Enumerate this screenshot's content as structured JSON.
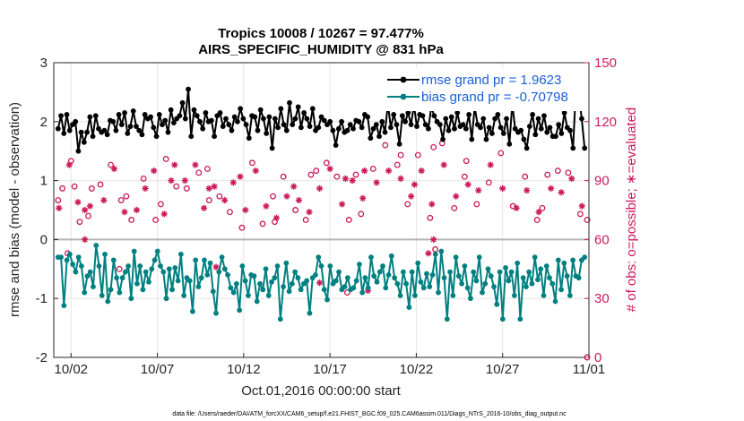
{
  "chart_data": {
    "type": "line",
    "title": "Tropics 10008 / 10267 = 97.477%",
    "subtitle": "AIRS_SPECIFIC_HUMIDITY @ 831 hPa",
    "xlabel": "Oct.01,2016 00:00:00 start",
    "ylabel": "rmse and bias (model - observation)",
    "ylabel_right": "# of obs: o=possible; ∗=evaluated",
    "xlim": [
      0,
      31
    ],
    "ylim": [
      -2,
      3
    ],
    "ylim_right": [
      0,
      150
    ],
    "x_ticks": [
      1,
      6,
      11,
      16,
      21,
      26,
      31
    ],
    "x_tick_labels": [
      "10/02",
      "10/07",
      "10/12",
      "10/17",
      "10/22",
      "10/27",
      "11/01"
    ],
    "y_ticks": [
      -2,
      -1,
      0,
      1,
      2,
      3
    ],
    "y_tick_labels": [
      "-2",
      "-1",
      "0",
      "1",
      "2",
      "3"
    ],
    "y_ticks_right": [
      0,
      30,
      60,
      90,
      120,
      150
    ],
    "y_tick_labels_right": [
      "0",
      "30",
      "60",
      "90",
      "120",
      "150"
    ],
    "grid": true,
    "legend_position": "top-right",
    "footer": "data file: /Users/raeder/DAI/ATM_forcXX/CAM6_setup/f.e21.FHIST_BGC.f09_025.CAM6assim.011/Diags_NTrS_2016-10/obs_diag_output.nc",
    "colors": {
      "rmse": "#000000",
      "bias": "#008080",
      "obs": "#cc1a5a",
      "legend_text": "#1a5fd6"
    },
    "series": [
      {
        "name": "rmse grand pr = 1.9623",
        "values": [
          1.88,
          2.1,
          1.8,
          2.12,
          1.85,
          1.95,
          2.0,
          1.5,
          1.82,
          1.65,
          1.82,
          2.08,
          1.75,
          2.1,
          1.88,
          1.82,
          1.85,
          1.78,
          2.02,
          2.0,
          1.85,
          2.12,
          1.95,
          2.15,
          1.8,
          1.92,
          2.18,
          1.92,
          1.85,
          1.78,
          2.12,
          2.05,
          2.08,
          1.9,
          1.75,
          2.12,
          1.95,
          2.02,
          1.82,
          2.2,
          1.98,
          2.05,
          2.1,
          2.32,
          2.05,
          2.55,
          1.75,
          2.2,
          2.1,
          2.0,
          1.88,
          2.15,
          2.0,
          2.02,
          1.75,
          2.1,
          2.15,
          1.92,
          2.05,
          1.95,
          1.85,
          2.08,
          2.0,
          2.22,
          2.05,
          1.95,
          1.72,
          2.1,
          2.08,
          1.85,
          2.2,
          2.05,
          1.8,
          2.08,
          1.55,
          2.05,
          1.9,
          2.22,
          1.95,
          1.85,
          2.32,
          1.95,
          2.05,
          2.25,
          1.9,
          2.15,
          2.05,
          1.92,
          2.22,
          1.85,
          1.9,
          2.08,
          2.02,
          1.95,
          2.0,
          1.85,
          1.6,
          1.88,
          2.0,
          1.82,
          1.85,
          1.95,
          1.88,
          2.02,
          2.0,
          1.9,
          2.12,
          2.08,
          1.72,
          1.88,
          1.95,
          1.75,
          2.0,
          1.82,
          2.3,
          1.9,
          2.12,
          1.95,
          1.62,
          2.1,
          2.0,
          2.15,
          1.95,
          2.28,
          1.92,
          2.12,
          2.1,
          1.95,
          1.88,
          2.25,
          2.1,
          2.0,
          1.95,
          1.7,
          2.05,
          1.85,
          2.08,
          1.88,
          2.15,
          1.92,
          1.95,
          1.88,
          2.12,
          1.7,
          2.25,
          1.95,
          1.9,
          2.05,
          1.7,
          1.9,
          1.8,
          2.05,
          2.12,
          1.9,
          1.8,
          2.05,
          1.62,
          2.3,
          1.88,
          1.82,
          1.85,
          1.7,
          1.55,
          1.92,
          2.12,
          1.78,
          2.05,
          1.88,
          2.1,
          1.82,
          1.9,
          1.75,
          1.75,
          1.95,
          1.8,
          2.15,
          1.9,
          1.85,
          1.55,
          2.55,
          2.45,
          2.05,
          1.55
        ]
      },
      {
        "name": "bias grand pr = -0.70798",
        "values": [
          -0.3,
          -0.3,
          -1.12,
          -0.35,
          -0.25,
          -0.42,
          -0.55,
          -0.3,
          -0.45,
          -0.9,
          -0.62,
          -0.55,
          -0.8,
          -0.1,
          -0.45,
          -0.95,
          -0.25,
          -1.05,
          -0.85,
          -0.35,
          -0.65,
          -0.9,
          -0.65,
          -0.55,
          -0.45,
          -1.0,
          -0.2,
          -0.75,
          -0.45,
          -0.85,
          -0.55,
          -0.72,
          -0.5,
          -0.35,
          -0.2,
          -0.45,
          -0.55,
          -1.0,
          -0.5,
          -0.85,
          -0.48,
          -0.7,
          -0.25,
          -0.95,
          -0.65,
          -0.7,
          -1.22,
          -0.35,
          -0.8,
          -0.65,
          -0.35,
          -0.6,
          -0.4,
          -0.88,
          -1.25,
          -0.55,
          -0.3,
          -0.5,
          -0.6,
          -0.82,
          -0.9,
          -0.75,
          -1.2,
          -0.45,
          -0.7,
          -0.95,
          -0.6,
          -0.62,
          -1.05,
          -0.75,
          -0.85,
          -0.5,
          -0.95,
          -0.72,
          -0.65,
          -0.45,
          -1.35,
          -0.8,
          -0.4,
          -0.88,
          -0.75,
          -0.55,
          -0.65,
          -0.85,
          -0.75,
          -0.7,
          -1.25,
          -0.65,
          -0.6,
          -0.3,
          -0.45,
          -0.85,
          -1.02,
          -0.45,
          -0.75,
          -0.7,
          -0.55,
          -0.85,
          -0.8,
          -0.65,
          -0.85,
          -0.82,
          -0.7,
          -0.42,
          -0.9,
          -0.65,
          -0.82,
          -0.3,
          -0.62,
          -0.72,
          -0.55,
          -0.45,
          -0.82,
          -0.6,
          -0.28,
          -0.65,
          -0.75,
          -0.95,
          -0.55,
          -0.75,
          -1.15,
          -0.55,
          -0.95,
          -0.4,
          -0.72,
          -0.82,
          -0.58,
          -0.8,
          -0.6,
          -0.25,
          -0.9,
          -0.2,
          -0.65,
          -1.35,
          -0.55,
          -0.95,
          -0.3,
          -0.62,
          -0.75,
          -0.45,
          -0.82,
          -1.0,
          -0.55,
          -0.7,
          -0.3,
          -0.9,
          -0.75,
          -0.5,
          -0.62,
          -0.8,
          -1.1,
          -0.55,
          -1.35,
          -0.48,
          -0.7,
          -0.55,
          -0.95,
          -0.4,
          -1.35,
          -0.65,
          -0.8,
          -0.55,
          -0.75,
          -0.3,
          -0.68,
          -0.5,
          -0.95,
          -0.45,
          -0.65,
          -0.75,
          -1.05,
          -0.35,
          -0.85,
          -0.4,
          -0.62,
          -0.95,
          -0.35,
          -0.62,
          -0.65,
          -0.35,
          -0.3
        ]
      }
    ],
    "obs_possible": [
      [
        0.25,
        80
      ],
      [
        0.5,
        86
      ],
      [
        1.0,
        100
      ],
      [
        1.5,
        69
      ],
      [
        2.0,
        72
      ],
      [
        2.7,
        88
      ],
      [
        3.3,
        98
      ],
      [
        3.9,
        80
      ],
      [
        4.5,
        70
      ],
      [
        5.2,
        91
      ],
      [
        5.9,
        70
      ],
      [
        6.5,
        101
      ],
      [
        7.1,
        87
      ],
      [
        7.7,
        86
      ],
      [
        8.4,
        94
      ],
      [
        9.0,
        80
      ],
      [
        9.6,
        82
      ],
      [
        10.2,
        74
      ],
      [
        10.9,
        66
      ],
      [
        11.5,
        99
      ],
      [
        12.1,
        68
      ],
      [
        12.7,
        82
      ],
      [
        13.3,
        92
      ],
      [
        14.0,
        75
      ],
      [
        14.6,
        70
      ],
      [
        15.2,
        95
      ],
      [
        15.8,
        99
      ],
      [
        16.4,
        92
      ],
      [
        17.1,
        70
      ],
      [
        17.8,
        73
      ],
      [
        18.5,
        96
      ],
      [
        19.2,
        108
      ],
      [
        19.9,
        98
      ],
      [
        20.5,
        78
      ],
      [
        21.1,
        103
      ],
      [
        21.8,
        71
      ],
      [
        22.5,
        109
      ],
      [
        23.2,
        76
      ],
      [
        23.8,
        92
      ],
      [
        24.5,
        78
      ],
      [
        25.2,
        89
      ],
      [
        25.9,
        104
      ],
      [
        26.6,
        77
      ],
      [
        27.3,
        92
      ],
      [
        28.0,
        70
      ],
      [
        28.6,
        93
      ],
      [
        29.2,
        95
      ],
      [
        29.8,
        94
      ],
      [
        30.5,
        73
      ],
      [
        30.9,
        70
      ],
      [
        28.3,
        76
      ],
      [
        12.8,
        69
      ],
      [
        4.2,
        82
      ],
      [
        8.9,
        96
      ],
      [
        17.5,
        93
      ],
      [
        20.1,
        103
      ],
      [
        23.9,
        100
      ],
      [
        1.2,
        87
      ],
      [
        6.2,
        78
      ],
      [
        14.9,
        93
      ],
      [
        22.0,
        107
      ],
      [
        2.2,
        86
      ]
    ],
    "obs_evaluated": [
      [
        0.3,
        76
      ],
      [
        0.9,
        98
      ],
      [
        1.4,
        79
      ],
      [
        2.1,
        77
      ],
      [
        2.9,
        80
      ],
      [
        3.5,
        96
      ],
      [
        4.1,
        74
      ],
      [
        4.8,
        75
      ],
      [
        5.3,
        86
      ],
      [
        5.8,
        95
      ],
      [
        6.4,
        73
      ],
      [
        7.0,
        98
      ],
      [
        7.6,
        90
      ],
      [
        8.2,
        98
      ],
      [
        8.7,
        76
      ],
      [
        9.3,
        87
      ],
      [
        9.9,
        80
      ],
      [
        10.4,
        89
      ],
      [
        11.1,
        75
      ],
      [
        11.7,
        95
      ],
      [
        12.3,
        77
      ],
      [
        12.9,
        71
      ],
      [
        13.5,
        82
      ],
      [
        14.2,
        80
      ],
      [
        14.8,
        74
      ],
      [
        15.4,
        86
      ],
      [
        16.0,
        96
      ],
      [
        16.7,
        78
      ],
      [
        17.3,
        90
      ],
      [
        17.9,
        81
      ],
      [
        18.7,
        89
      ],
      [
        19.4,
        95
      ],
      [
        20.1,
        91
      ],
      [
        20.7,
        82
      ],
      [
        21.3,
        95
      ],
      [
        21.9,
        78
      ],
      [
        22.6,
        98
      ],
      [
        23.3,
        82
      ],
      [
        24.0,
        88
      ],
      [
        24.6,
        85
      ],
      [
        25.3,
        98
      ],
      [
        26.0,
        86
      ],
      [
        26.8,
        76
      ],
      [
        27.4,
        85
      ],
      [
        28.1,
        74
      ],
      [
        28.8,
        86
      ],
      [
        29.4,
        84
      ],
      [
        30.0,
        91
      ],
      [
        30.6,
        77
      ],
      [
        1.8,
        75
      ],
      [
        10.8,
        92
      ],
      [
        13.9,
        87
      ],
      [
        18.0,
        95
      ],
      [
        16.9,
        91
      ],
      [
        6.8,
        90
      ],
      [
        9.0,
        86
      ],
      [
        20.9,
        88
      ]
    ],
    "obs_possible_bottom": [
      [
        0.8,
        53
      ],
      [
        3.8,
        45
      ],
      [
        17.0,
        33
      ],
      [
        22.1,
        55
      ],
      [
        30.9,
        0
      ]
    ],
    "obs_evaluated_bottom": [
      [
        1.8,
        60
      ],
      [
        9.4,
        46
      ],
      [
        15.4,
        38
      ],
      [
        18.2,
        34
      ],
      [
        21.7,
        53
      ],
      [
        22.0,
        60
      ]
    ]
  }
}
